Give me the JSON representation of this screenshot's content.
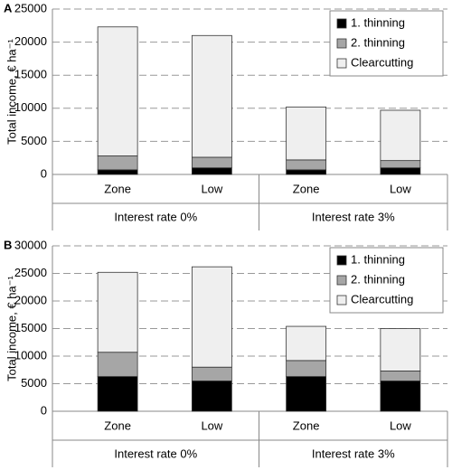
{
  "chart_data": [
    {
      "type": "stacked_bar",
      "panel_label": "A",
      "y_label": "Total income, € ha⁻¹",
      "categories": [
        "Zone",
        "Low",
        "Zone",
        "Low"
      ],
      "groups": [
        "Interest rate 0%",
        "Interest rate 3%"
      ],
      "series": [
        {
          "name": "1. thinning",
          "color": "#000000",
          "values": [
            700,
            1000,
            700,
            1000
          ]
        },
        {
          "name": "2. thinning",
          "color": "#a6a6a6",
          "values": [
            2100,
            1600,
            1500,
            1100
          ]
        },
        {
          "name": "Clearcutting",
          "color": "#efefef",
          "values": [
            19500,
            18400,
            8000,
            7600
          ]
        }
      ],
      "ylim": [
        0,
        25000
      ],
      "yticks": [
        0,
        5000,
        10000,
        15000,
        20000,
        25000
      ],
      "grid": true,
      "legend": "top-right"
    },
    {
      "type": "stacked_bar",
      "panel_label": "B",
      "y_label": "Total income, € ha⁻¹",
      "categories": [
        "Zone",
        "Low",
        "Zone",
        "Low"
      ],
      "groups": [
        "Interest rate 0%",
        "Interest rate 3%"
      ],
      "series": [
        {
          "name": "1. thinning",
          "color": "#000000",
          "values": [
            6300,
            5500,
            6300,
            5500
          ]
        },
        {
          "name": "2. thinning",
          "color": "#a6a6a6",
          "values": [
            4400,
            2500,
            2900,
            1800
          ]
        },
        {
          "name": "Clearcutting",
          "color": "#efefef",
          "values": [
            14500,
            18200,
            6200,
            7700
          ]
        }
      ],
      "ylim": [
        0,
        30000
      ],
      "yticks": [
        0,
        5000,
        10000,
        15000,
        20000,
        25000,
        30000
      ],
      "grid": true,
      "legend": "top-right"
    }
  ]
}
